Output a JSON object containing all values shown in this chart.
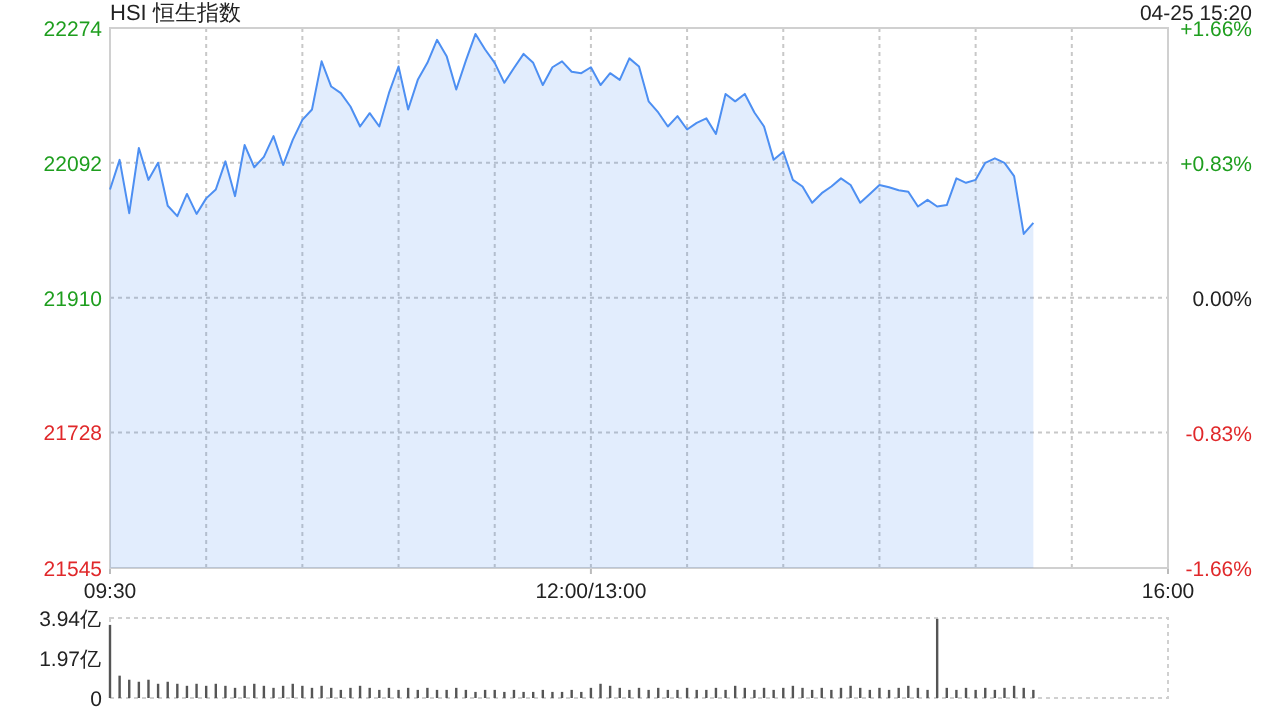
{
  "chart_data": [
    {
      "type": "area",
      "title": "HSI 恒生指数",
      "annotations": [
        "04-25 15:20"
      ],
      "color": "#4d8ff2",
      "grid": true,
      "categories": [
        "09:30",
        null,
        null,
        null,
        null,
        null,
        null,
        null,
        null,
        null,
        null,
        null,
        null,
        null,
        null,
        null,
        null,
        null,
        null,
        null,
        null,
        null,
        null,
        null,
        null,
        null,
        null,
        null,
        null,
        null,
        null,
        null,
        null,
        null,
        null,
        null,
        null,
        null,
        null,
        null,
        null,
        null,
        null,
        null,
        null,
        null,
        null,
        null,
        null,
        null,
        "12:00/13:00",
        null,
        null,
        null,
        null,
        null,
        null,
        null,
        null,
        null,
        null,
        null,
        null,
        null,
        null,
        null,
        null,
        null,
        null,
        null,
        null,
        null,
        null,
        null,
        null,
        null,
        null,
        null,
        null,
        null,
        null,
        null,
        null,
        null,
        null,
        null,
        null,
        null,
        null,
        null,
        null,
        null,
        null,
        null,
        null,
        null,
        null,
        null,
        null,
        null,
        null,
        null,
        null,
        null,
        null,
        null,
        null,
        null,
        null,
        null,
        "16:00"
      ],
      "ylim": [
        21545,
        22274
      ],
      "yticks": [
        21545,
        21728,
        21910,
        22092,
        22274
      ],
      "y2lim": [
        -1.66,
        1.66
      ],
      "y2ticks": [
        {
          "value": -1.66,
          "label": "-1.66%"
        },
        {
          "value": -0.83,
          "label": "-0.83%"
        },
        {
          "value": 0,
          "label": "0.00%"
        },
        {
          "value": 0.83,
          "label": "+0.83%"
        },
        {
          "value": 1.66,
          "label": "+1.66%"
        }
      ],
      "values": [
        22056,
        22096,
        22024,
        22112,
        22069,
        22092,
        22034,
        22020,
        22050,
        22023,
        22044,
        22056,
        22094,
        22047,
        22116,
        22086,
        22100,
        22128,
        22089,
        22123,
        22150,
        22164,
        22229,
        22195,
        22186,
        22168,
        22141,
        22159,
        22141,
        22186,
        22222,
        22164,
        22204,
        22227,
        22258,
        22236,
        22191,
        22230,
        22266,
        22245,
        22227,
        22200,
        22220,
        22239,
        22227,
        22197,
        22221,
        22229,
        22215,
        22213,
        22221,
        22197,
        22213,
        22204,
        22233,
        22222,
        22175,
        22160,
        22141,
        22155,
        22137,
        22146,
        22152,
        22131,
        22185,
        22175,
        22185,
        22160,
        22141,
        22096,
        22107,
        22069,
        22060,
        22038,
        22051,
        22060,
        22071,
        22062,
        22038,
        22050,
        22062,
        22059,
        22055,
        22053,
        22033,
        22042,
        22033,
        22035,
        22071,
        22065,
        22069,
        22092,
        22098,
        22092,
        22074,
        21996,
        22011,
        null,
        null,
        null,
        null,
        null,
        null,
        null,
        null,
        null,
        null,
        null,
        null,
        null,
        null
      ]
    },
    {
      "type": "bar",
      "color": "#555555",
      "tick_labels": "y",
      "categories": [
        null,
        null,
        null,
        null,
        null,
        null,
        null,
        null,
        null,
        null,
        null,
        null,
        null,
        null,
        null,
        null,
        null,
        null,
        null,
        null,
        null,
        null,
        null,
        null,
        null,
        null,
        null,
        null,
        null,
        null,
        null,
        null,
        null,
        null,
        null,
        null,
        null,
        null,
        null,
        null,
        null,
        null,
        null,
        null,
        null,
        null,
        null,
        null,
        null,
        null,
        null,
        null,
        null,
        null,
        null,
        null,
        null,
        null,
        null,
        null,
        null,
        null,
        null,
        null,
        null,
        null,
        null,
        null,
        null,
        null,
        null,
        null,
        null,
        null,
        null,
        null,
        null,
        null,
        null,
        null,
        null,
        null,
        null,
        null,
        null,
        null,
        null,
        null,
        null,
        null,
        null,
        null,
        null,
        null,
        null,
        null,
        null,
        null,
        null,
        null,
        null,
        null,
        null,
        null,
        null,
        null,
        null,
        null,
        null,
        null,
        null
      ],
      "ylim": [
        0,
        3.94
      ],
      "yticks": [
        0,
        {
          "value": 1.97,
          "label": "1.97亿"
        },
        {
          "value": 3.94,
          "label": "3.94亿"
        }
      ],
      "values": [
        3.6,
        1.1,
        0.9,
        0.8,
        0.9,
        0.7,
        0.8,
        0.7,
        0.6,
        0.7,
        0.6,
        0.7,
        0.6,
        0.5,
        0.6,
        0.7,
        0.6,
        0.5,
        0.6,
        0.7,
        0.6,
        0.5,
        0.6,
        0.5,
        0.4,
        0.5,
        0.6,
        0.5,
        0.4,
        0.5,
        0.4,
        0.5,
        0.4,
        0.5,
        0.4,
        0.4,
        0.5,
        0.4,
        0.3,
        0.4,
        0.4,
        0.3,
        0.4,
        0.3,
        0.3,
        0.4,
        0.3,
        0.3,
        0.4,
        0.3,
        0.5,
        0.7,
        0.6,
        0.5,
        0.4,
        0.5,
        0.4,
        0.5,
        0.4,
        0.4,
        0.5,
        0.4,
        0.4,
        0.5,
        0.4,
        0.6,
        0.5,
        0.4,
        0.5,
        0.4,
        0.5,
        0.6,
        0.5,
        0.4,
        0.5,
        0.4,
        0.5,
        0.6,
        0.5,
        0.4,
        0.5,
        0.4,
        0.5,
        0.6,
        0.5,
        0.4,
        3.9,
        0.5,
        0.4,
        0.5,
        0.4,
        0.5,
        0.4,
        0.5,
        0.6,
        0.5,
        0.4,
        null,
        null,
        null,
        null,
        null,
        null,
        null,
        null,
        null,
        null,
        null,
        null,
        null,
        null
      ]
    }
  ]
}
